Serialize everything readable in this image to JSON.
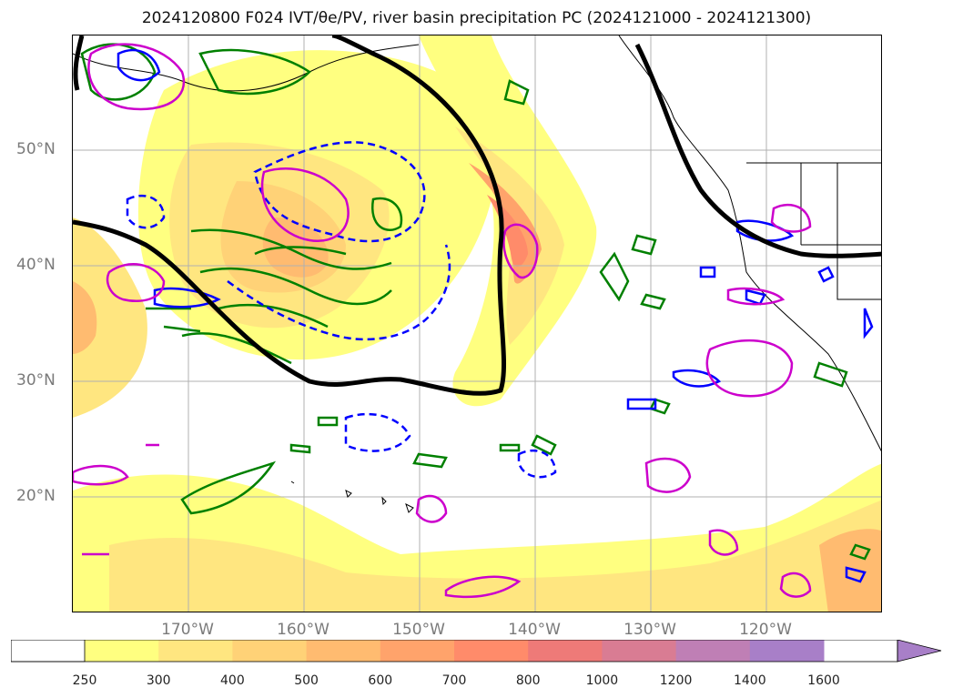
{
  "title": "2024120800 F024 IVT/θe/PV, river basin precipitation PC (2024121000 - 2024121300)",
  "lat_labels": [
    "50°N",
    "40°N",
    "30°N",
    "20°N"
  ],
  "lon_labels": [
    "170°W",
    "160°W",
    "150°W",
    "140°W",
    "130°W",
    "120°W"
  ],
  "colorbar": {
    "ticks": [
      "250",
      "300",
      "400",
      "500",
      "600",
      "700",
      "800",
      "1000",
      "1200",
      "1400",
      "1600"
    ],
    "colors": [
      "#ffff80",
      "#ffe680",
      "#ffd277",
      "#ffbb70",
      "#ffa36b",
      "#ff8b6a",
      "#ee7a78",
      "#d97c93",
      "#bf7fb5",
      "#a87fc8"
    ]
  },
  "legend_colors": {
    "ivt_fill": "#ffd277",
    "contour_green": "#008000",
    "contour_blue": "#0000ff",
    "contour_magenta": "#cc00cc",
    "thick_line": "#000000"
  }
}
